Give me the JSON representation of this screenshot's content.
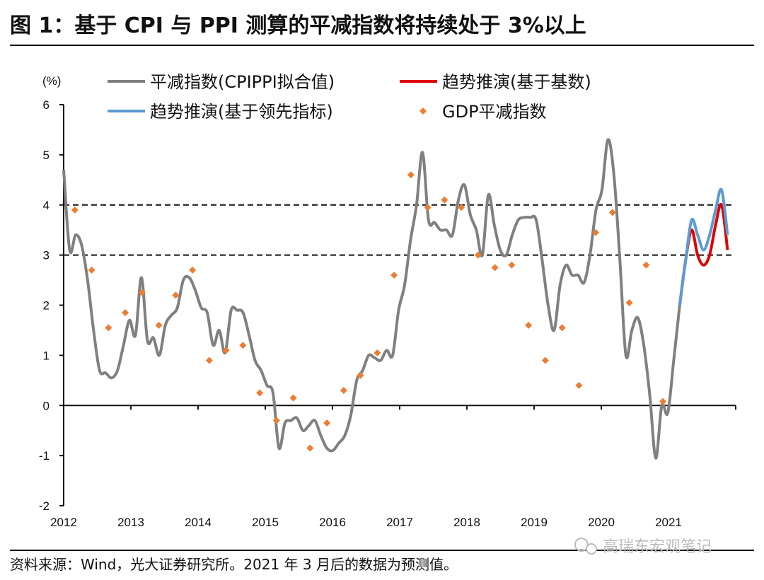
{
  "title": "图 1：基于 CPI 与 PPI 测算的平减指数将持续处于 3%以上",
  "source": "资料来源：Wind，光大证券研究所。2021 年 3 月后的数据为预测值。",
  "watermark": "高瑞东宏观笔记",
  "chart_data": {
    "type": "line",
    "ylabel": "(%)",
    "ylim": [
      -2,
      6
    ],
    "yticks": [
      "6",
      "5",
      "4",
      "3",
      "2",
      "1",
      "0",
      "-1",
      "-2"
    ],
    "xlim": [
      2012,
      2022
    ],
    "xticks": [
      "2012",
      "2013",
      "2014",
      "2015",
      "2016",
      "2017",
      "2018",
      "2019",
      "2020",
      "2021"
    ],
    "reference_lines": [
      4,
      3
    ],
    "legend_placement": "top",
    "colors": {
      "deflator": "#808080",
      "trend_base": "#e00000",
      "trend_leading": "#5b9bd5",
      "gdp": "#ed7d31"
    },
    "series": [
      {
        "name": "平减指数(CPIPPI拟合值)",
        "key": "deflator",
        "style": "line",
        "points": [
          [
            "2012-01",
            4.7
          ],
          [
            "2012-02",
            3.1
          ],
          [
            "2012-03",
            3.4
          ],
          [
            "2012-04",
            3.2
          ],
          [
            "2012-05",
            2.5
          ],
          [
            "2012-06",
            1.5
          ],
          [
            "2012-07",
            0.7
          ],
          [
            "2012-08",
            0.65
          ],
          [
            "2012-09",
            0.55
          ],
          [
            "2012-10",
            0.7
          ],
          [
            "2012-11",
            1.2
          ],
          [
            "2012-12",
            1.7
          ],
          [
            "2013-01",
            1.4
          ],
          [
            "2013-02",
            2.55
          ],
          [
            "2013-03",
            1.3
          ],
          [
            "2013-04",
            1.35
          ],
          [
            "2013-05",
            1.0
          ],
          [
            "2013-06",
            1.6
          ],
          [
            "2013-07",
            1.8
          ],
          [
            "2013-08",
            1.95
          ],
          [
            "2013-09",
            2.5
          ],
          [
            "2013-10",
            2.55
          ],
          [
            "2013-11",
            2.3
          ],
          [
            "2013-12",
            1.95
          ],
          [
            "2014-01",
            1.85
          ],
          [
            "2014-02",
            1.2
          ],
          [
            "2014-03",
            1.5
          ],
          [
            "2014-04",
            1.05
          ],
          [
            "2014-05",
            1.9
          ],
          [
            "2014-06",
            1.9
          ],
          [
            "2014-07",
            1.85
          ],
          [
            "2014-08",
            1.4
          ],
          [
            "2014-09",
            0.9
          ],
          [
            "2014-10",
            0.7
          ],
          [
            "2014-11",
            0.4
          ],
          [
            "2014-12",
            0.25
          ],
          [
            "2015-01",
            -0.85
          ],
          [
            "2015-02",
            -0.35
          ],
          [
            "2015-03",
            -0.3
          ],
          [
            "2015-04",
            -0.25
          ],
          [
            "2015-05",
            -0.5
          ],
          [
            "2015-06",
            -0.4
          ],
          [
            "2015-07",
            -0.3
          ],
          [
            "2015-08",
            -0.6
          ],
          [
            "2015-09",
            -0.85
          ],
          [
            "2015-10",
            -0.9
          ],
          [
            "2015-11",
            -0.75
          ],
          [
            "2015-12",
            -0.6
          ],
          [
            "2016-01",
            -0.2
          ],
          [
            "2016-02",
            0.5
          ],
          [
            "2016-03",
            0.7
          ],
          [
            "2016-04",
            1.0
          ],
          [
            "2016-05",
            0.95
          ],
          [
            "2016-06",
            0.9
          ],
          [
            "2016-07",
            1.1
          ],
          [
            "2016-08",
            1.0
          ],
          [
            "2016-09",
            1.9
          ],
          [
            "2016-10",
            2.4
          ],
          [
            "2016-11",
            3.3
          ],
          [
            "2016-12",
            4.0
          ],
          [
            "2017-01",
            5.05
          ],
          [
            "2017-02",
            3.7
          ],
          [
            "2017-03",
            3.65
          ],
          [
            "2017-04",
            3.5
          ],
          [
            "2017-05",
            3.5
          ],
          [
            "2017-06",
            3.4
          ],
          [
            "2017-07",
            4.1
          ],
          [
            "2017-08",
            4.4
          ],
          [
            "2017-09",
            3.8
          ],
          [
            "2017-10",
            3.5
          ],
          [
            "2017-11",
            3.0
          ],
          [
            "2017-12",
            4.2
          ],
          [
            "2018-01",
            3.6
          ],
          [
            "2018-02",
            3.1
          ],
          [
            "2018-03",
            3.0
          ],
          [
            "2018-04",
            3.4
          ],
          [
            "2018-05",
            3.7
          ],
          [
            "2018-06",
            3.75
          ],
          [
            "2018-07",
            3.75
          ],
          [
            "2018-08",
            3.7
          ],
          [
            "2018-09",
            2.9
          ],
          [
            "2018-10",
            2.0
          ],
          [
            "2018-11",
            1.5
          ],
          [
            "2018-12",
            2.4
          ],
          [
            "2019-01",
            2.8
          ],
          [
            "2019-02",
            2.6
          ],
          [
            "2019-03",
            2.6
          ],
          [
            "2019-04",
            2.45
          ],
          [
            "2019-05",
            3.0
          ],
          [
            "2019-06",
            3.9
          ],
          [
            "2019-07",
            4.3
          ],
          [
            "2019-08",
            5.3
          ],
          [
            "2019-09",
            4.6
          ],
          [
            "2019-10",
            2.9
          ],
          [
            "2019-11",
            1.0
          ],
          [
            "2019-12",
            1.5
          ],
          [
            "2020-01",
            1.75
          ],
          [
            "2020-02",
            1.2
          ],
          [
            "2020-03",
            0.2
          ],
          [
            "2020-04",
            -1.05
          ],
          [
            "2020-05",
            0.0
          ],
          [
            "2020-06",
            -0.15
          ],
          [
            "2020-07",
            0.9
          ],
          [
            "2020-08",
            2.0
          ]
        ]
      },
      {
        "name": "趋势推演(基于基数)",
        "key": "trend_base",
        "style": "line",
        "points": [
          [
            "2020-08",
            2.0
          ],
          [
            "2020-09",
            2.9
          ],
          [
            "2020-10",
            3.5
          ],
          [
            "2020-11",
            3.0
          ],
          [
            "2020-12",
            2.8
          ],
          [
            "2021-01",
            3.0
          ],
          [
            "2021-02",
            3.6
          ],
          [
            "2021-03",
            4.0
          ],
          [
            "2021-04",
            3.1
          ]
        ]
      },
      {
        "name": "趋势推演(基于领先指标)",
        "key": "trend_leading",
        "style": "line",
        "points": [
          [
            "2020-08",
            2.0
          ],
          [
            "2020-09",
            2.9
          ],
          [
            "2020-10",
            3.7
          ],
          [
            "2020-11",
            3.4
          ],
          [
            "2020-12",
            3.1
          ],
          [
            "2021-01",
            3.4
          ],
          [
            "2021-02",
            3.9
          ],
          [
            "2021-03",
            4.3
          ],
          [
            "2021-04",
            3.4
          ]
        ]
      },
      {
        "name": "GDP平减指数",
        "key": "gdp",
        "style": "scatter",
        "points": [
          [
            "2012Q1",
            3.9
          ],
          [
            "2012Q2",
            2.7
          ],
          [
            "2012Q3",
            1.55
          ],
          [
            "2012Q4",
            1.85
          ],
          [
            "2013Q1",
            2.25
          ],
          [
            "2013Q2",
            1.6
          ],
          [
            "2013Q3",
            2.2
          ],
          [
            "2013Q4",
            2.7
          ],
          [
            "2014Q1",
            0.9
          ],
          [
            "2014Q2",
            1.1
          ],
          [
            "2014Q3",
            1.2
          ],
          [
            "2014Q4",
            0.25
          ],
          [
            "2015Q1",
            -0.3
          ],
          [
            "2015Q2",
            0.15
          ],
          [
            "2015Q3",
            -0.85
          ],
          [
            "2015Q4",
            -0.35
          ],
          [
            "2016Q1",
            0.3
          ],
          [
            "2016Q2",
            0.6
          ],
          [
            "2016Q3",
            1.05
          ],
          [
            "2016Q4",
            2.6
          ],
          [
            "2017Q1",
            4.6
          ],
          [
            "2017Q2",
            3.95
          ],
          [
            "2017Q3",
            4.1
          ],
          [
            "2017Q4",
            3.95
          ],
          [
            "2018Q1",
            3.0
          ],
          [
            "2018Q2",
            2.75
          ],
          [
            "2018Q3",
            2.8
          ],
          [
            "2018Q4",
            1.6
          ],
          [
            "2019Q1",
            0.9
          ],
          [
            "2019Q2",
            1.55
          ],
          [
            "2019Q3",
            0.4
          ],
          [
            "2019Q4",
            3.45
          ],
          [
            "2020Q1",
            3.85
          ],
          [
            "2020Q2",
            2.05
          ],
          [
            "2020Q3",
            2.8
          ],
          [
            "2020Q4",
            0.08
          ]
        ]
      }
    ]
  }
}
